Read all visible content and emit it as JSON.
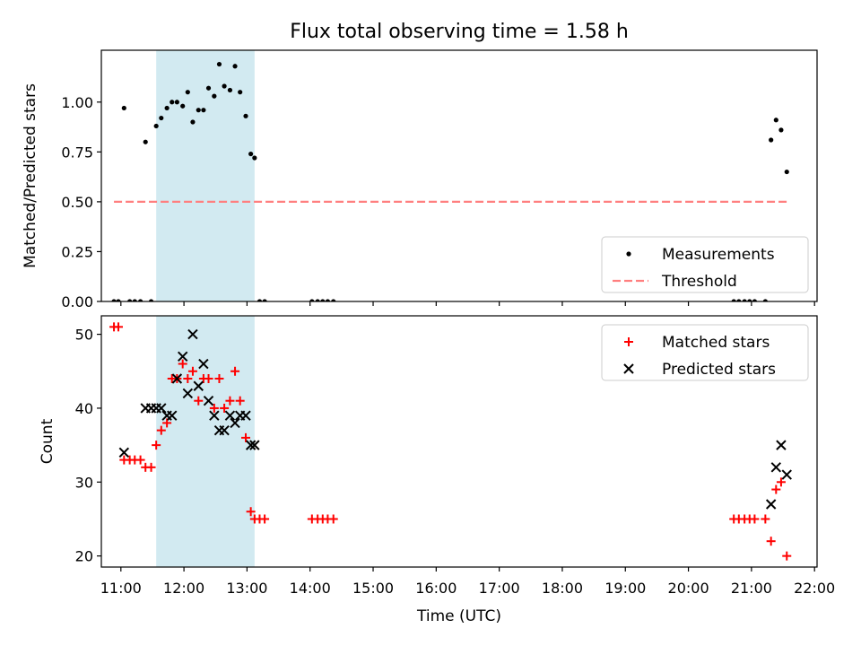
{
  "title": "Flux total observing time = 1.58 h",
  "colors": {
    "measurement": "#000000",
    "threshold": "#ff7f7f",
    "matched": "#ff0000",
    "predicted": "#000000",
    "highlight": "#add8e6"
  },
  "chart_data": [
    {
      "type": "scatter",
      "name": "ratio-panel",
      "ylabel": "Matched/Predicted stars",
      "xlim": [
        10.69,
        22.04
      ],
      "ylim": [
        0.0,
        1.26
      ],
      "yticks": [
        0.0,
        0.25,
        0.5,
        0.75,
        1.0
      ],
      "ytick_labels": [
        "0.00",
        "0.25",
        "0.50",
        "0.75",
        "1.00"
      ],
      "highlight_span": [
        11.56,
        13.12
      ],
      "threshold": {
        "value": 0.5,
        "x_range": [
          10.89,
          21.56
        ]
      },
      "legend": {
        "position": "lower-right",
        "entries": [
          "Measurements",
          "Threshold"
        ]
      },
      "series": [
        {
          "name": "Measurements",
          "marker": "dot",
          "x": [
            10.89,
            10.96,
            11.05,
            11.14,
            11.22,
            11.31,
            11.39,
            11.48,
            11.56,
            11.64,
            11.73,
            11.81,
            11.89,
            11.98,
            12.06,
            12.14,
            12.23,
            12.31,
            12.39,
            12.48,
            12.56,
            12.64,
            12.73,
            12.81,
            12.89,
            12.98,
            13.06,
            13.12,
            13.2,
            13.28,
            14.03,
            14.12,
            14.2,
            14.28,
            14.37,
            20.72,
            20.8,
            20.89,
            20.97,
            21.05,
            21.22,
            21.31,
            21.39,
            21.47,
            21.56
          ],
          "y": [
            0.0,
            0.0,
            0.97,
            0.0,
            0.0,
            0.0,
            0.8,
            0.0,
            0.88,
            0.92,
            0.97,
            1.0,
            1.0,
            0.98,
            1.05,
            0.9,
            0.96,
            0.96,
            1.07,
            1.03,
            1.19,
            1.08,
            1.06,
            1.18,
            1.05,
            0.93,
            0.74,
            0.72,
            0.0,
            0.0,
            0.0,
            0.0,
            0.0,
            0.0,
            0.0,
            0.0,
            0.0,
            0.0,
            0.0,
            0.0,
            0.0,
            0.81,
            0.91,
            0.86,
            0.65
          ]
        }
      ]
    },
    {
      "type": "scatter",
      "name": "count-panel",
      "xlabel": "Time (UTC)",
      "ylabel": "Count",
      "xlim": [
        10.69,
        22.04
      ],
      "ylim": [
        18.5,
        52.5
      ],
      "yticks": [
        20,
        30,
        40,
        50
      ],
      "ytick_labels": [
        "20",
        "30",
        "40",
        "50"
      ],
      "xticks": [
        11,
        12,
        13,
        14,
        15,
        16,
        17,
        18,
        19,
        20,
        21,
        22
      ],
      "xtick_labels": [
        "11:00",
        "12:00",
        "13:00",
        "14:00",
        "15:00",
        "16:00",
        "17:00",
        "18:00",
        "19:00",
        "20:00",
        "21:00",
        "22:00"
      ],
      "highlight_span": [
        11.56,
        13.12
      ],
      "legend": {
        "position": "upper-right",
        "entries": [
          "Matched stars",
          "Predicted stars"
        ]
      },
      "series": [
        {
          "name": "Matched stars",
          "marker": "plus",
          "x": [
            10.89,
            10.96,
            11.05,
            11.14,
            11.22,
            11.31,
            11.39,
            11.48,
            11.56,
            11.64,
            11.73,
            11.81,
            11.89,
            11.98,
            12.06,
            12.14,
            12.23,
            12.31,
            12.39,
            12.48,
            12.56,
            12.64,
            12.73,
            12.81,
            12.89,
            12.98,
            13.06,
            13.12,
            13.2,
            13.28,
            14.03,
            14.12,
            14.2,
            14.28,
            14.37,
            20.72,
            20.8,
            20.89,
            20.97,
            21.05,
            21.22,
            21.31,
            21.39,
            21.47,
            21.56
          ],
          "y": [
            51,
            51,
            33,
            33,
            33,
            33,
            32,
            32,
            35,
            37,
            38,
            44,
            44,
            46,
            44,
            45,
            41,
            44,
            44,
            40,
            44,
            40,
            41,
            45,
            41,
            36,
            26,
            25,
            25,
            25,
            25,
            25,
            25,
            25,
            25,
            25,
            25,
            25,
            25,
            25,
            25,
            22,
            29,
            30,
            20
          ]
        },
        {
          "name": "Predicted stars",
          "marker": "x",
          "x": [
            11.05,
            11.39,
            11.48,
            11.56,
            11.64,
            11.73,
            11.81,
            11.89,
            11.98,
            12.06,
            12.14,
            12.23,
            12.31,
            12.39,
            12.48,
            12.56,
            12.64,
            12.73,
            12.81,
            12.89,
            12.98,
            13.06,
            13.12,
            21.31,
            21.39,
            21.47,
            21.56
          ],
          "y": [
            34,
            40,
            40,
            40,
            40,
            39,
            39,
            44,
            47,
            42,
            50,
            43,
            46,
            41,
            39,
            37,
            37,
            39,
            38,
            39,
            39,
            35,
            35,
            27,
            32,
            35,
            31
          ]
        }
      ]
    }
  ]
}
